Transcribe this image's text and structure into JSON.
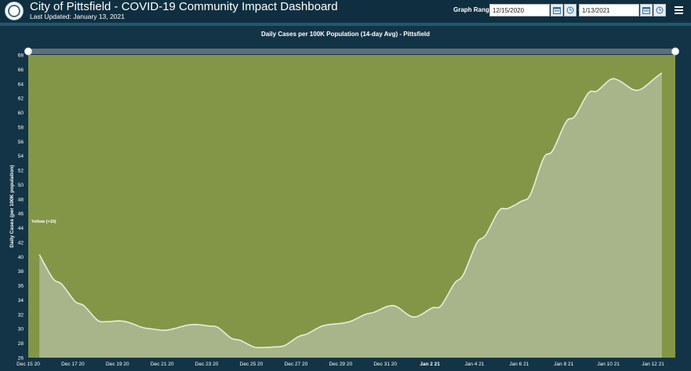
{
  "header": {
    "title": "City of Pittsfield - COVID-19 Community Impact Dashboard",
    "last_updated": "Last Updated: January 13, 2021",
    "range_label": "Graph Range",
    "range_start": "12/15/2020",
    "range_end": "1/13/2021",
    "separator": "-",
    "icons": [
      "city-seal-icon",
      "calendar-icon",
      "clock-icon",
      "calendar-icon",
      "clock-icon",
      "hamburger-menu-icon"
    ]
  },
  "colors": {
    "background": "#133446",
    "plot_fill": "#839647",
    "area_fill": "#a8b58a",
    "line": "#e8ecdf"
  },
  "chart_data": {
    "type": "area",
    "title": "Daily Cases per 100K Population (14-day Avg) - Pittsfield",
    "xlabel": "",
    "ylabel": "Daily Cases (per 100K population)",
    "ylim": [
      26,
      68
    ],
    "yticks": [
      "26",
      "28",
      "30",
      "32",
      "34",
      "36",
      "38",
      "40",
      "42",
      "44",
      "46",
      "48",
      "50",
      "52",
      "54",
      "56",
      "58",
      "60",
      "62",
      "64",
      "66",
      "68"
    ],
    "xticks": [
      {
        "label": "Dec 15 20",
        "day": 0,
        "bold": false
      },
      {
        "label": "Dec 17 20",
        "day": 2,
        "bold": false
      },
      {
        "label": "Dec 19 20",
        "day": 4,
        "bold": false
      },
      {
        "label": "Dec 21 20",
        "day": 6,
        "bold": false
      },
      {
        "label": "Dec 23 20",
        "day": 8,
        "bold": false
      },
      {
        "label": "Dec 25 20",
        "day": 10,
        "bold": false
      },
      {
        "label": "Dec 27 20",
        "day": 12,
        "bold": false
      },
      {
        "label": "Dec 29 20",
        "day": 14,
        "bold": false
      },
      {
        "label": "Dec 31 20",
        "day": 16,
        "bold": false
      },
      {
        "label": "Jan 2 21",
        "day": 18,
        "bold": true
      },
      {
        "label": "Jan 4 21",
        "day": 20,
        "bold": false
      },
      {
        "label": "Jan 6 21",
        "day": 22,
        "bold": false
      },
      {
        "label": "Jan 8 21",
        "day": 24,
        "bold": false
      },
      {
        "label": "Jan 10 21",
        "day": 26,
        "bold": false
      },
      {
        "label": "Jan 12 21",
        "day": 28,
        "bold": false
      }
    ],
    "annotation": {
      "label": "Yellow (>10)"
    },
    "grid": false,
    "series": [
      {
        "values": [
          [
            0.0,
            40.3
          ],
          [
            0.6,
            37.0
          ],
          [
            1.0,
            36.2
          ],
          [
            1.6,
            33.8
          ],
          [
            2.0,
            33.2
          ],
          [
            2.6,
            31.2
          ],
          [
            3.0,
            31.0
          ],
          [
            3.6,
            31.1
          ],
          [
            4.0,
            30.9
          ],
          [
            4.6,
            30.2
          ],
          [
            5.0,
            30.0
          ],
          [
            5.6,
            29.8
          ],
          [
            6.0,
            30.0
          ],
          [
            6.6,
            30.5
          ],
          [
            7.0,
            30.6
          ],
          [
            7.6,
            30.4
          ],
          [
            8.0,
            30.2
          ],
          [
            8.6,
            28.7
          ],
          [
            9.0,
            28.4
          ],
          [
            9.6,
            27.5
          ],
          [
            10.0,
            27.4
          ],
          [
            10.6,
            27.5
          ],
          [
            11.0,
            27.7
          ],
          [
            11.6,
            28.9
          ],
          [
            12.0,
            29.3
          ],
          [
            12.6,
            30.3
          ],
          [
            13.0,
            30.6
          ],
          [
            13.6,
            30.8
          ],
          [
            14.0,
            31.1
          ],
          [
            14.6,
            32.0
          ],
          [
            15.0,
            32.3
          ],
          [
            15.6,
            33.1
          ],
          [
            16.0,
            33.1
          ],
          [
            16.6,
            31.8
          ],
          [
            17.0,
            31.8
          ],
          [
            17.6,
            32.9
          ],
          [
            18.0,
            33.2
          ],
          [
            18.6,
            36.3
          ],
          [
            19.0,
            37.5
          ],
          [
            19.6,
            41.9
          ],
          [
            20.0,
            43.0
          ],
          [
            20.6,
            46.4
          ],
          [
            21.0,
            46.7
          ],
          [
            21.6,
            47.7
          ],
          [
            22.0,
            48.6
          ],
          [
            22.6,
            53.7
          ],
          [
            23.0,
            54.7
          ],
          [
            23.6,
            58.7
          ],
          [
            24.0,
            59.5
          ],
          [
            24.6,
            62.7
          ],
          [
            25.0,
            63.0
          ],
          [
            25.6,
            64.6
          ],
          [
            26.0,
            64.4
          ],
          [
            26.6,
            63.2
          ],
          [
            27.0,
            63.3
          ],
          [
            27.6,
            64.8
          ],
          [
            27.9,
            65.5
          ]
        ]
      }
    ]
  }
}
